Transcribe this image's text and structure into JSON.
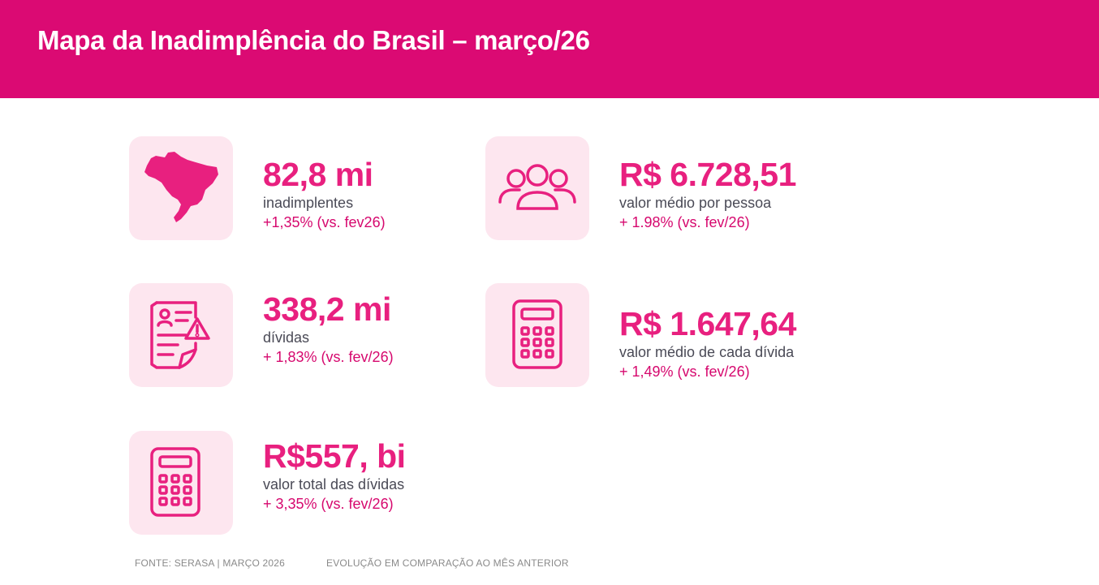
{
  "header": {
    "title": "Mapa da Inadimplência do Brasil – março/26"
  },
  "accent_color": "#db0a73",
  "cards": [
    {
      "icon": "brazil-map-icon",
      "value": "82,8 mi",
      "label": "inadimplentes",
      "delta": "+1,35% (vs. fev26)"
    },
    {
      "icon": "people-group-icon",
      "value": "R$ 6.728,51",
      "label": "valor médio por pessoa",
      "delta": "+ 1.98% (vs. fev/26)"
    },
    {
      "icon": "debt-document-warning-icon",
      "value": "338,2 mi",
      "label": "dívidas",
      "delta": "+ 1,83% (vs. fev/26)"
    },
    {
      "icon": "calculator-icon",
      "value": "R$ 1.647,64",
      "label": "valor médio de cada dívida",
      "delta": "+ 1,49% (vs. fev/26)"
    },
    {
      "icon": "calculator-icon",
      "value": "R$557, bi",
      "label": "valor total das dívidas",
      "delta": "+ 3,35% (vs. fev/26)"
    }
  ],
  "footer": {
    "source": "FONTE: SERASA | MARÇO 2026",
    "note": "EVOLUÇÃO EM COMPARAÇÃO AO MÊS ANTERIOR"
  }
}
